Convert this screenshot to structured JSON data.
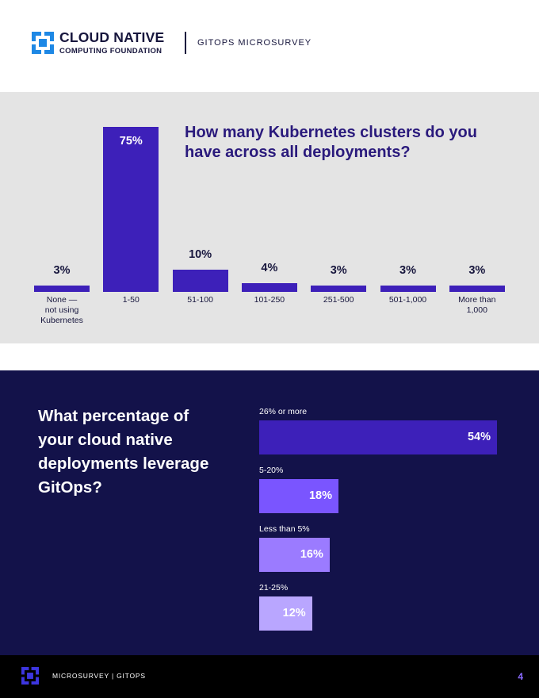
{
  "header": {
    "brand_line1": "CLOUD NATIVE",
    "brand_line2": "COMPUTING FOUNDATION",
    "subtitle": "GITOPS MICROSURVEY",
    "logo_icon": "cncf-logo-icon"
  },
  "colors": {
    "bar_primary": "#3d20b9",
    "dark_panel": "#13124a",
    "grey_panel": "#e4e4e4",
    "light_purple": "#8a6bff"
  },
  "chart_data": [
    {
      "type": "bar",
      "title": "How many Kubernetes clusters do you have across all deployments?",
      "categories": [
        "None — not using Kubernetes",
        "1-50",
        "51-100",
        "101-250",
        "251-500",
        "501-1,000",
        "More than 1,000"
      ],
      "category_lines": [
        [
          "None —",
          "not using",
          "Kubernetes"
        ],
        [
          "1-50"
        ],
        [
          "51-100"
        ],
        [
          "101-250"
        ],
        [
          "251-500"
        ],
        [
          "501-1,000"
        ],
        [
          "More than",
          "1,000"
        ]
      ],
      "values": [
        3,
        75,
        10,
        4,
        3,
        3,
        3
      ],
      "value_labels": [
        "3%",
        "75%",
        "10%",
        "4%",
        "3%",
        "3%",
        "3%"
      ],
      "unit": "%",
      "ylim": [
        0,
        75
      ],
      "grid": false
    },
    {
      "type": "bar",
      "orientation": "horizontal",
      "title": "What percentage of your cloud native deployments leverage GitOps?",
      "categories": [
        "26% or more",
        "5-20%",
        "Less than 5%",
        "21-25%"
      ],
      "values": [
        54,
        18,
        16,
        12
      ],
      "value_labels": [
        "54%",
        "18%",
        "16%",
        "12%"
      ],
      "colors": [
        "#3d20b9",
        "#7a55ff",
        "#9b7bff",
        "#b9a6ff"
      ],
      "unit": "%",
      "xlim": [
        0,
        54
      ],
      "grid": false
    }
  ],
  "footer": {
    "text": "MICROSURVEY | GITOPS",
    "page": "4",
    "logo_icon": "cncf-logo-icon"
  }
}
